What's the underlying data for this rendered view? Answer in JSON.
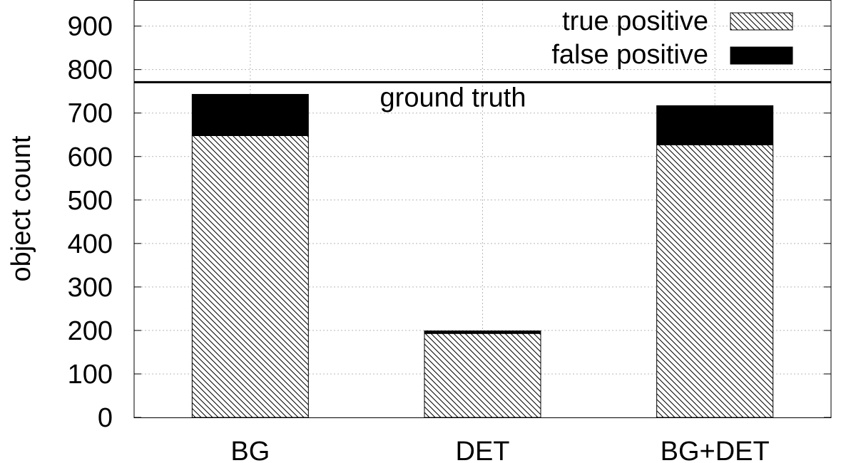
{
  "chart_data": {
    "type": "bar",
    "stacked": true,
    "categories": [
      "BG",
      "DET",
      "BG+DET"
    ],
    "series": [
      {
        "name": "true positive",
        "values": [
          648,
          193,
          627
        ],
        "pattern": "hatch",
        "color": "#000000"
      },
      {
        "name": "false positive",
        "values": [
          95,
          6,
          90
        ],
        "pattern": "solid",
        "color": "#000000"
      }
    ],
    "reference_line": {
      "label": "ground truth",
      "value": 771
    },
    "ylabel": "object count",
    "xlabel": "",
    "ylim": [
      0,
      960
    ],
    "yticks": [
      0,
      100,
      200,
      300,
      400,
      500,
      600,
      700,
      800,
      900
    ],
    "grid": true,
    "legend_position": "top-right"
  }
}
